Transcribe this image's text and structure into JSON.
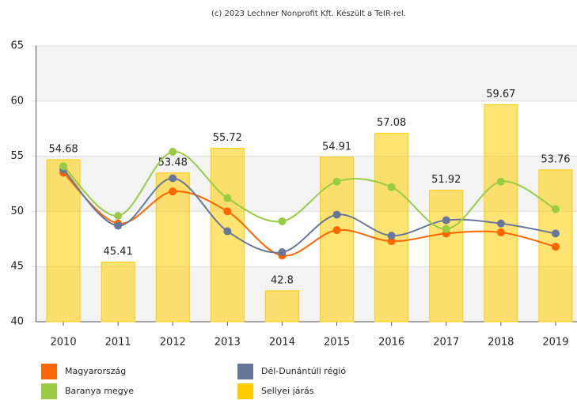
{
  "chart_data": {
    "type": "bar",
    "title": "(c) 2023 Lechner Nonprofit Kft. Készült a TeIR-rel.",
    "categories": [
      "2010",
      "2011",
      "2012",
      "2013",
      "2014",
      "2015",
      "2016",
      "2017",
      "2018",
      "2019"
    ],
    "series": [
      {
        "name": "Magyarország",
        "type": "line",
        "color": "#ff6600",
        "values": [
          53.5,
          48.9,
          51.8,
          50.0,
          46.0,
          48.3,
          47.3,
          48.0,
          48.1,
          46.8
        ]
      },
      {
        "name": "Dél-Dunántúli régió",
        "type": "line",
        "color": "#667799",
        "values": [
          53.8,
          48.7,
          53.0,
          48.2,
          46.3,
          49.7,
          47.8,
          49.2,
          48.9,
          48.0
        ]
      },
      {
        "name": "Baranya megye",
        "type": "line",
        "color": "#99cc44",
        "values": [
          54.1,
          49.6,
          55.4,
          51.2,
          49.1,
          52.7,
          52.2,
          48.4,
          52.7,
          50.2
        ]
      },
      {
        "name": "Sellyei járás",
        "type": "bar",
        "color": "#ffcc00",
        "values": [
          54.68,
          45.41,
          53.48,
          55.72,
          42.8,
          54.91,
          57.08,
          51.92,
          59.67,
          53.76
        ]
      }
    ],
    "ylim": [
      40,
      65
    ],
    "yticks": [
      40,
      45,
      50,
      55,
      60,
      65
    ],
    "grid": true
  }
}
